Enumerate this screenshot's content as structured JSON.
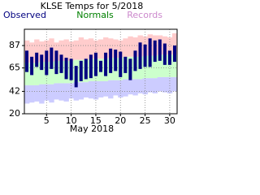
{
  "chart_data": {
    "type": "range-bar",
    "title": "KLSE Temps for 5/2018",
    "xlabel": "May 2018",
    "x": [
      1,
      2,
      3,
      4,
      5,
      6,
      7,
      8,
      9,
      10,
      11,
      12,
      13,
      14,
      15,
      16,
      17,
      18,
      19,
      20,
      21,
      22,
      23,
      24,
      25,
      26,
      27,
      28,
      29,
      30,
      31
    ],
    "xlim": [
      0.5,
      31.5
    ],
    "xticks": [
      5,
      10,
      15,
      20,
      25,
      30
    ],
    "ylim": [
      20,
      103
    ],
    "yticks": [
      20,
      42,
      65,
      87
    ],
    "grid": true,
    "series": [
      {
        "name": "Observed",
        "color": "#000080",
        "high": [
          82,
          76,
          80,
          78,
          82,
          85,
          82,
          78,
          75,
          74,
          67,
          72,
          74,
          78,
          80,
          72,
          80,
          84,
          83,
          81,
          76,
          74,
          82,
          90,
          88,
          94,
          92,
          93,
          89,
          82,
          87
        ],
        "low": [
          61,
          58,
          66,
          63,
          58,
          64,
          59,
          60,
          54,
          53,
          46,
          52,
          54,
          55,
          57,
          61,
          57,
          60,
          62,
          56,
          60,
          53,
          62,
          64,
          66,
          66,
          71,
          72,
          68,
          68,
          71
        ]
      },
      {
        "name": "Normals",
        "color": "#008000",
        "fill": "#ccffcc",
        "high": [
          70,
          70,
          70,
          71,
          71,
          71,
          72,
          72,
          72,
          72,
          73,
          73,
          73,
          74,
          74,
          74,
          74,
          75,
          75,
          75,
          76,
          76,
          76,
          76,
          77,
          77,
          77,
          78,
          78,
          78,
          78
        ],
        "low": [
          48,
          48,
          48,
          49,
          49,
          49,
          50,
          50,
          50,
          50,
          51,
          51,
          51,
          52,
          52,
          52,
          52,
          53,
          53,
          53,
          54,
          54,
          54,
          54,
          55,
          55,
          55,
          56,
          56,
          56,
          56
        ]
      },
      {
        "name": "Records",
        "color": "#cc88cc",
        "fill": "#ffcccc",
        "low_fill": "#ccccff",
        "high": [
          92,
          90,
          93,
          91,
          92,
          94,
          90,
          92,
          93,
          91,
          92,
          95,
          93,
          94,
          92,
          93,
          95,
          94,
          93,
          92,
          94,
          96,
          95,
          97,
          96,
          98,
          97,
          97,
          96,
          95,
          99
        ],
        "low": [
          30,
          31,
          32,
          30,
          33,
          31,
          34,
          33,
          32,
          35,
          33,
          34,
          36,
          35,
          34,
          36,
          37,
          35,
          38,
          36,
          37,
          39,
          38,
          40,
          39,
          41,
          40,
          42,
          41,
          40,
          42
        ]
      }
    ]
  }
}
